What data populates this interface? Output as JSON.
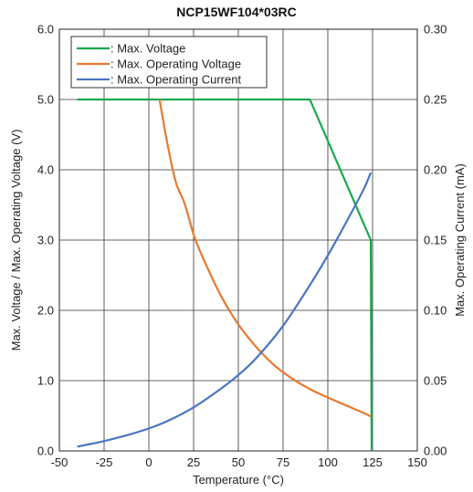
{
  "chart_data": {
    "type": "line",
    "title": "NCP15WF104*03RC",
    "xlabel": "Temperature (°C)",
    "ylabel_left": "Max. Voltage / Max. Operating Voltage (V)",
    "ylabel_right": "Max. Operating Current (mA)",
    "xlim": [
      -50,
      150
    ],
    "ylim_left": [
      0,
      6
    ],
    "ylim_right": [
      0,
      0.3
    ],
    "x_ticks": [
      "-50",
      "-25",
      "0",
      "25",
      "50",
      "75",
      "100",
      "125",
      "150"
    ],
    "y_left_ticks": [
      "0.0",
      "1.0",
      "2.0",
      "3.0",
      "4.0",
      "5.0",
      "6.0"
    ],
    "y_right_ticks": [
      "0.00",
      "0.05",
      "0.10",
      "0.15",
      "0.20",
      "0.25",
      "0.30"
    ],
    "grid": true,
    "legend_position": "top-left",
    "series": [
      {
        "name": ": Max. Voltage",
        "axis": "left",
        "color": "#1aa84f",
        "x": [
          -40,
          90,
          124,
          124.5
        ],
        "y": [
          5.0,
          5.0,
          3.0,
          0.0
        ]
      },
      {
        "name": ": Max. Operating Voltage",
        "axis": "left",
        "color": "#e8792f",
        "x": [
          6,
          10,
          15,
          20,
          25,
          30,
          40,
          50,
          60,
          70,
          80,
          90,
          100,
          110,
          120,
          124
        ],
        "y": [
          5.0,
          4.42,
          3.83,
          3.52,
          3.08,
          2.76,
          2.22,
          1.8,
          1.48,
          1.22,
          1.03,
          0.88,
          0.76,
          0.65,
          0.54,
          0.49
        ]
      },
      {
        "name": ": Max. Operating Current",
        "axis": "right",
        "color": "#4a74c2",
        "x": [
          -40,
          -25,
          -10,
          0,
          10,
          25,
          40,
          50,
          60,
          75,
          90,
          100,
          110,
          120,
          124
        ],
        "y": [
          0.003,
          0.007,
          0.012,
          0.016,
          0.021,
          0.031,
          0.044,
          0.054,
          0.066,
          0.089,
          0.118,
          0.139,
          0.162,
          0.186,
          0.198
        ]
      }
    ]
  }
}
